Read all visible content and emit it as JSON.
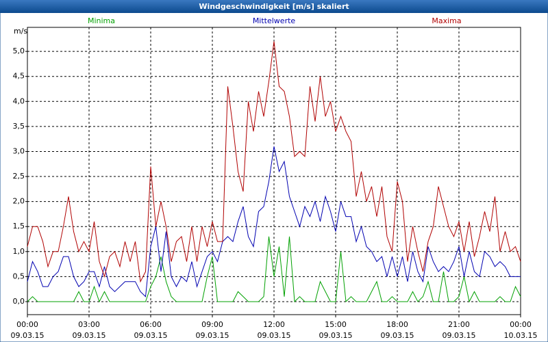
{
  "chart_data": {
    "type": "line",
    "title": "Windgeschwindigkeit [m/s] skaliert",
    "y_unit": "m/s",
    "x": [
      0,
      0.25,
      0.5,
      0.75,
      1,
      1.25,
      1.5,
      1.75,
      2,
      2.25,
      2.5,
      2.75,
      3,
      3.25,
      3.5,
      3.75,
      4,
      4.25,
      4.5,
      4.75,
      5,
      5.25,
      5.5,
      5.75,
      6,
      6.25,
      6.5,
      6.75,
      7,
      7.25,
      7.5,
      7.75,
      8,
      8.25,
      8.5,
      8.75,
      9,
      9.25,
      9.5,
      9.75,
      10,
      10.25,
      10.5,
      10.75,
      11,
      11.25,
      11.5,
      11.75,
      12,
      12.25,
      12.5,
      12.75,
      13,
      13.25,
      13.5,
      13.75,
      14,
      14.25,
      14.5,
      14.75,
      15,
      15.25,
      15.5,
      15.75,
      16,
      16.25,
      16.5,
      16.75,
      17,
      17.25,
      17.5,
      17.75,
      18,
      18.25,
      18.5,
      18.75,
      19,
      19.25,
      19.5,
      19.75,
      20,
      20.25,
      20.5,
      20.75,
      21,
      21.25,
      21.5,
      21.75,
      22,
      22.25,
      22.5,
      22.75,
      23,
      23.25,
      23.5,
      23.75,
      24
    ],
    "series": [
      {
        "name": "Minima",
        "color": "#00a000",
        "values": [
          0.0,
          0.1,
          0.0,
          0.0,
          0.0,
          0.0,
          0.0,
          0.0,
          0.0,
          0.0,
          0.2,
          0.0,
          0.0,
          0.3,
          0.0,
          0.2,
          0.0,
          0.0,
          0.0,
          0.0,
          0.0,
          0.0,
          0.0,
          0.0,
          0.3,
          0.5,
          0.9,
          0.4,
          0.1,
          0.0,
          0.0,
          0.0,
          0.0,
          0.0,
          0.0,
          0.5,
          0.9,
          0.0,
          0.0,
          0.0,
          0.0,
          0.2,
          0.1,
          0.0,
          0.0,
          0.0,
          0.1,
          1.3,
          0.5,
          1.1,
          0.1,
          1.3,
          0.0,
          0.1,
          0.0,
          0.0,
          0.0,
          0.4,
          0.2,
          0.0,
          0.0,
          1.0,
          0.0,
          0.1,
          0.0,
          0.0,
          0.0,
          0.2,
          0.4,
          0.0,
          0.0,
          0.1,
          0.0,
          0.0,
          0.0,
          0.2,
          0.0,
          0.1,
          0.4,
          0.0,
          0.0,
          0.6,
          0.0,
          0.0,
          0.1,
          0.5,
          0.0,
          0.2,
          0.0,
          0.0,
          0.0,
          0.0,
          0.1,
          0.0,
          0.0,
          0.3,
          0.1
        ]
      },
      {
        "name": "Mittelwerte",
        "color": "#0000b0",
        "values": [
          0.4,
          0.8,
          0.6,
          0.3,
          0.3,
          0.5,
          0.6,
          0.9,
          0.9,
          0.5,
          0.3,
          0.4,
          0.6,
          0.6,
          0.3,
          0.7,
          0.3,
          0.2,
          0.3,
          0.4,
          0.4,
          0.4,
          0.2,
          0.1,
          1.1,
          1.5,
          0.6,
          1.4,
          0.5,
          0.3,
          0.5,
          0.4,
          0.8,
          0.3,
          0.6,
          0.9,
          1.0,
          0.8,
          1.2,
          1.3,
          1.2,
          1.6,
          1.9,
          1.3,
          1.1,
          1.8,
          1.9,
          2.4,
          3.1,
          2.6,
          2.8,
          2.1,
          1.8,
          1.5,
          1.9,
          1.7,
          2.0,
          1.6,
          2.1,
          1.8,
          1.4,
          2.0,
          1.7,
          1.7,
          1.2,
          1.5,
          1.1,
          1.0,
          0.8,
          0.9,
          0.5,
          0.9,
          0.5,
          0.9,
          0.4,
          1.0,
          0.6,
          0.4,
          1.1,
          0.8,
          0.6,
          0.7,
          0.6,
          0.8,
          1.1,
          0.5,
          1.0,
          0.6,
          0.5,
          1.0,
          0.9,
          0.7,
          0.8,
          0.7,
          0.5,
          0.5,
          0.5
        ]
      },
      {
        "name": "Maxima",
        "color": "#b00000",
        "values": [
          1.1,
          1.5,
          1.5,
          1.2,
          0.7,
          1.0,
          1.0,
          1.5,
          2.1,
          1.4,
          1.0,
          1.2,
          1.0,
          1.6,
          0.8,
          0.5,
          0.9,
          1.0,
          0.7,
          1.2,
          0.8,
          1.2,
          0.4,
          0.6,
          2.7,
          1.5,
          2.0,
          1.5,
          0.8,
          1.2,
          1.3,
          0.8,
          1.5,
          0.8,
          1.5,
          1.1,
          1.6,
          1.2,
          1.2,
          4.3,
          3.5,
          2.6,
          2.2,
          4.0,
          3.4,
          4.2,
          3.7,
          4.4,
          5.2,
          4.3,
          4.2,
          3.7,
          2.9,
          3.0,
          2.9,
          4.3,
          3.6,
          4.5,
          3.7,
          4.0,
          3.4,
          3.7,
          3.4,
          3.2,
          2.1,
          2.6,
          2.0,
          2.3,
          1.7,
          2.3,
          1.3,
          1.0,
          2.4,
          2.0,
          0.8,
          1.5,
          1.0,
          0.6,
          1.2,
          1.5,
          2.3,
          1.9,
          1.5,
          1.3,
          1.6,
          1.0,
          1.6,
          0.9,
          1.3,
          1.8,
          1.4,
          2.1,
          1.0,
          1.4,
          1.0,
          1.1,
          0.8
        ]
      }
    ],
    "xlim": [
      0,
      24
    ],
    "xticks": [
      {
        "value": 0,
        "label": "00:00"
      },
      {
        "value": 3,
        "label": "03:00"
      },
      {
        "value": 6,
        "label": "06:00"
      },
      {
        "value": 9,
        "label": "09:00"
      },
      {
        "value": 12,
        "label": "12:00"
      },
      {
        "value": 15,
        "label": "15:00"
      },
      {
        "value": 18,
        "label": "18:00"
      },
      {
        "value": 21,
        "label": "21:00"
      },
      {
        "value": 24,
        "label": "00:00"
      }
    ],
    "xtick_dates": [
      "09.03.15",
      "09.03.15",
      "09.03.15",
      "09.03.15",
      "09.03.15",
      "09.03.15",
      "09.03.15",
      "09.03.15",
      "10.03.15"
    ],
    "ylim": [
      -0.26,
      5.48
    ],
    "yticks": [
      {
        "value": 0,
        "label": "0,0"
      },
      {
        "value": 0.5,
        "label": "0,5"
      },
      {
        "value": 1,
        "label": "1,0"
      },
      {
        "value": 1.5,
        "label": "1,5"
      },
      {
        "value": 2,
        "label": "2,0"
      },
      {
        "value": 2.5,
        "label": "2,5"
      },
      {
        "value": 3,
        "label": "3,0"
      },
      {
        "value": 3.5,
        "label": "3,5"
      },
      {
        "value": 4,
        "label": "4,0"
      },
      {
        "value": 4.5,
        "label": "4,5"
      },
      {
        "value": 5,
        "label": "5,0"
      }
    ],
    "grid": true
  }
}
